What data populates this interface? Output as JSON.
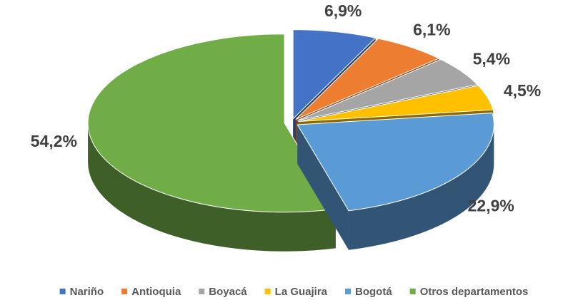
{
  "chart_data": {
    "type": "pie3d",
    "categories": [
      "Nariño",
      "Antioquia",
      "Boyacá",
      "La Guajira",
      "Bogotá",
      "Otros departamentos"
    ],
    "values": [
      6.9,
      6.1,
      5.4,
      4.5,
      22.9,
      54.2
    ],
    "value_labels": [
      "6,9%",
      "6,1%",
      "5,4%",
      "4,5%",
      "22,9%",
      "54,2%"
    ],
    "colors": [
      "#4472c4",
      "#ed7d31",
      "#a5a5a5",
      "#ffc000",
      "#5b9bd5",
      "#70ad47"
    ],
    "legend": "bottom"
  }
}
